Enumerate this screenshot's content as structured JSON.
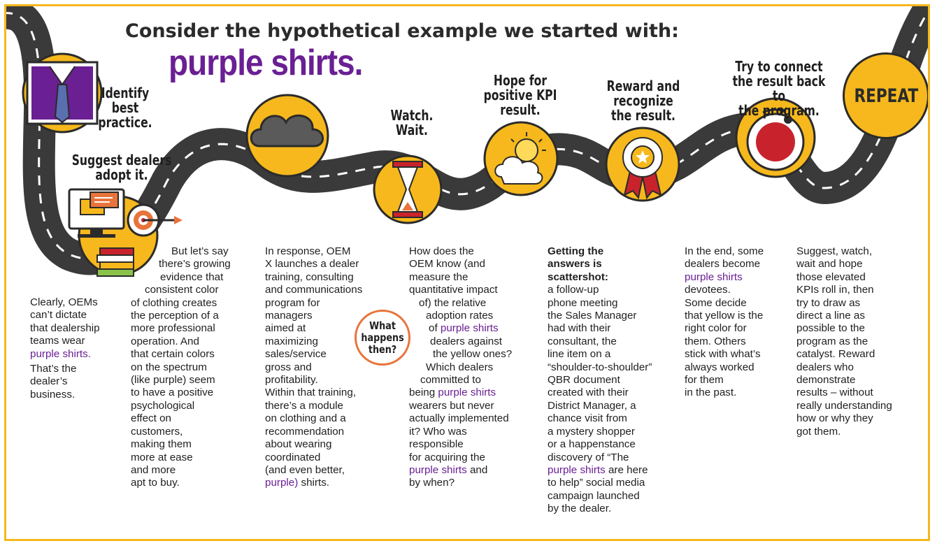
{
  "header": {
    "title": "Consider the hypothetical example we started with:",
    "subtitle": "purple shirts."
  },
  "steps": {
    "identify": "Identify\nbest\npractice.",
    "suggest": "Suggest dealers\nadopt it.",
    "watch": "Watch.\nWait.",
    "hope": "Hope for\npositive KPI\nresult.",
    "reward": "Reward and\nrecognize\nthe result.",
    "connect": "Try to connect\nthe result back to\nthe program.",
    "repeat": "REPEAT"
  },
  "callout": {
    "what_happens": "What\nhappens\nthen?"
  },
  "columns": {
    "c1": {
      "a": "Clearly, OEMs",
      "b": "can’t dictate",
      "c": "that dealership",
      "d": "teams wear",
      "e": "purple shirts.",
      "f": "That’s the",
      "g": "dealer’s",
      "h": "business."
    },
    "c2": [
      "But let’s say",
      "there’s growing",
      "evidence that",
      "consistent color",
      "of clothing creates",
      "the perception of a",
      "more professional",
      "operation. And",
      "that certain colors",
      "on the spectrum",
      "(like purple) seem",
      "to have a positive",
      "psychological",
      "effect on",
      "customers,",
      "making them",
      "more at ease",
      "and more",
      "apt to buy."
    ],
    "c3": {
      "l1": "In response, OEM",
      "l2": "X launches a dealer",
      "l3": "training, consulting",
      "l4": "and communications",
      "l5": "program for",
      "l6": "managers",
      "l7": "aimed at",
      "l8": "maximizing",
      "l9": "sales/service",
      "l10": "gross and",
      "l11": "profitability.",
      "l12": "Within that training,",
      "l13": "there’s a module",
      "l14": "on clothing and a",
      "l15": "recommendation",
      "l16": "about wearing",
      "l17": "coordinated",
      "l18": "(and even better,",
      "l19a": "purple)",
      "l19b": " shirts."
    },
    "c4": {
      "l1": "How does the",
      "l2": "OEM know (and",
      "l3": "measure the",
      "l4": "quantitative impact",
      "l5": "of) the relative",
      "l6": "adoption rates",
      "l7a": "of ",
      "l7b": "purple shirts",
      "l8": "dealers against",
      "l9": "the yellow ones?",
      "l10": "Which dealers",
      "l11": "committed to",
      "l12a": "being ",
      "l12b": "purple shirts",
      "l13": "wearers but never",
      "l14": "actually implemented",
      "l15": "it? Who was",
      "l16": "responsible",
      "l17": "for acquiring the",
      "l18a": "purple shirts",
      "l18b": " and",
      "l19": "by when?"
    },
    "c5": {
      "b1": "Getting the",
      "b2": "answers is",
      "b3": "scattershot:",
      "l1": "a follow-up",
      "l2": "phone meeting",
      "l3": "the Sales Manager",
      "l4": "had with their",
      "l5": "consultant, the",
      "l6": "line item on a",
      "l7": "“shoulder-to-shoulder”",
      "l8": "QBR document",
      "l9": "created with their",
      "l10": "District Manager, a",
      "l11": "chance visit from",
      "l12": "a mystery shopper",
      "l13": "or a happenstance",
      "l14": "discovery of “The",
      "l15a": "purple shirts",
      "l15b": " are here",
      "l16": "to help” social media",
      "l17": "campaign launched",
      "l18": "by the dealer."
    },
    "c6": {
      "l1": "In the end, some",
      "l2": "dealers become",
      "l3": "purple shirts",
      "l4": "devotees.",
      "l5": "Some decide",
      "l6": "that yellow is the",
      "l7": "right color for",
      "l8": "them. Others",
      "l9": "stick with what’s",
      "l10": "always worked",
      "l11": "for them",
      "l12": "in the past."
    },
    "c7": [
      "Suggest, watch,",
      "wait and hope",
      "those elevated",
      "KPIs roll in, then",
      "try to draw as",
      "direct a line as",
      "possible to the",
      "program as the",
      "catalyst. Reward",
      "dealers who",
      "demonstrate",
      "results – without",
      "really understanding",
      "how or why they",
      "got them."
    ]
  },
  "icons": {
    "shirt": "purple-shirt-icon",
    "computer": "computer-chat-icon",
    "target": "target-arrow-icon",
    "books": "books-icon",
    "cloud": "storm-cloud-icon",
    "hourglass": "hourglass-icon",
    "sun": "sun-cloud-icon",
    "ribbon": "award-ribbon-icon",
    "timer": "timer-icon"
  },
  "colors": {
    "accent_yellow": "#f6b81c",
    "purple": "#6a1f93",
    "road": "#3a3a3a",
    "orange": "#e8743b",
    "red": "#c8232c"
  }
}
